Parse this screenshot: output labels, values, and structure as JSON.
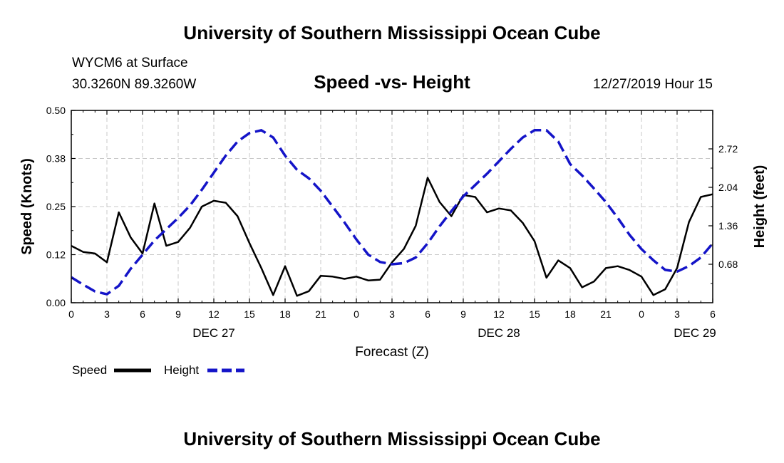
{
  "header": {
    "title_top": "University of Southern Mississippi Ocean Cube",
    "title_bottom": "University of Southern Mississippi Ocean Cube",
    "station": "WYCM6 at Surface",
    "coords": "30.3260N 89.3260W",
    "chart_title": "Speed -vs- Height",
    "datetime": "12/27/2019 Hour 15"
  },
  "legend": {
    "speed_label": "Speed",
    "height_label": "Height"
  },
  "colors": {
    "speed": "#000000",
    "height": "#1414c8",
    "grid": "#c8c8c8"
  },
  "chart_data": {
    "type": "line",
    "title": "Speed -vs- Height",
    "xlabel": "Forecast (Z)",
    "ylabel": "Speed (Knots)",
    "y2label": "Height (feet)",
    "x": [
      0,
      1,
      2,
      3,
      4,
      5,
      6,
      7,
      8,
      9,
      10,
      11,
      12,
      13,
      14,
      15,
      16,
      17,
      18,
      19,
      20,
      21,
      22,
      23,
      24,
      25,
      26,
      27,
      28,
      29,
      30,
      31,
      32,
      33,
      34,
      35,
      36,
      37,
      38,
      39,
      40,
      41,
      42,
      43,
      44,
      45,
      46,
      47,
      48,
      49,
      50,
      51,
      52,
      53,
      54
    ],
    "xlim": [
      0,
      54
    ],
    "ylim": [
      0,
      0.5
    ],
    "y2lim": [
      0,
      3.4
    ],
    "xticks": [
      0,
      3,
      6,
      9,
      12,
      15,
      18,
      21,
      24,
      27,
      30,
      33,
      36,
      39,
      42,
      45,
      48,
      51,
      54
    ],
    "xtick_labels": [
      "0",
      "3",
      "6",
      "9",
      "12",
      "15",
      "18",
      "21",
      "0",
      "3",
      "6",
      "9",
      "12",
      "15",
      "18",
      "21",
      "0",
      "3",
      "6"
    ],
    "yticks": [
      0.0,
      0.125,
      0.25,
      0.375,
      0.5
    ],
    "ytick_labels": [
      "0.00",
      "0.12",
      "0.25",
      "0.38",
      "0.50"
    ],
    "y2ticks": [
      0.68,
      1.36,
      2.04,
      2.72
    ],
    "y2tick_labels": [
      "0.68",
      "1.36",
      "2.04",
      "2.72"
    ],
    "day_labels": [
      {
        "x": 12,
        "label": "DEC 27"
      },
      {
        "x": 36,
        "label": "DEC 28"
      },
      {
        "x": 52.5,
        "label": "DEC 29"
      }
    ],
    "series": [
      {
        "name": "Speed",
        "axis": "left",
        "style": "solid",
        "values": [
          0.148,
          0.132,
          0.128,
          0.105,
          0.235,
          0.17,
          0.128,
          0.258,
          0.148,
          0.158,
          0.195,
          0.25,
          0.265,
          0.26,
          0.225,
          0.155,
          0.09,
          0.02,
          0.095,
          0.018,
          0.03,
          0.07,
          0.068,
          0.062,
          0.068,
          0.058,
          0.06,
          0.105,
          0.14,
          0.2,
          0.325,
          0.262,
          0.225,
          0.28,
          0.275,
          0.235,
          0.245,
          0.24,
          0.208,
          0.16,
          0.065,
          0.11,
          0.09,
          0.04,
          0.055,
          0.09,
          0.095,
          0.085,
          0.068,
          0.02,
          0.035,
          0.09,
          0.21,
          0.275,
          0.282
        ]
      },
      {
        "name": "Height",
        "axis": "right",
        "style": "dashed",
        "values": [
          0.45,
          0.32,
          0.2,
          0.15,
          0.3,
          0.6,
          0.85,
          1.1,
          1.3,
          1.5,
          1.72,
          2.0,
          2.3,
          2.6,
          2.85,
          3.0,
          3.05,
          2.92,
          2.6,
          2.35,
          2.2,
          1.98,
          1.7,
          1.42,
          1.12,
          0.85,
          0.72,
          0.68,
          0.7,
          0.8,
          1.05,
          1.35,
          1.62,
          1.88,
          2.08,
          2.28,
          2.5,
          2.72,
          2.92,
          3.05,
          3.05,
          2.85,
          2.45,
          2.25,
          2.02,
          1.78,
          1.5,
          1.2,
          0.95,
          0.75,
          0.58,
          0.55,
          0.65,
          0.8,
          1.05
        ]
      }
    ]
  }
}
